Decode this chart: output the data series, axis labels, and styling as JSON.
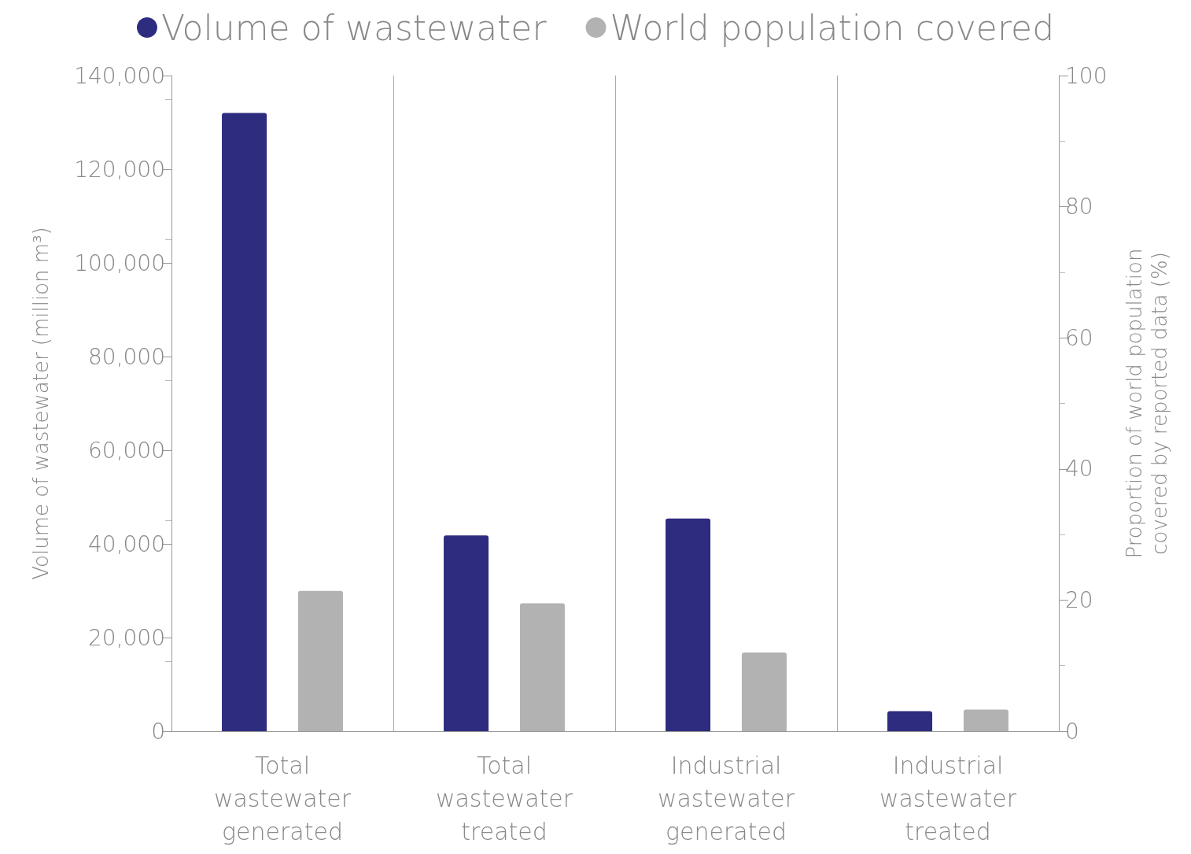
{
  "chart_data": {
    "type": "bar",
    "categories": [
      "Total wastewater generated",
      "Total wastewater treated",
      "Industrial wastewater generated",
      "Industrial wastewater treated"
    ],
    "series": [
      {
        "name": "Volume of wastewater",
        "color": "#2e2c7e",
        "values": [
          132000,
          41800,
          45400,
          4300
        ]
      },
      {
        "name": "World population covered",
        "color": "#b2b2b2",
        "axis": "y2",
        "values": [
          21.4,
          19.5,
          12.0,
          3.3
        ]
      }
    ],
    "ylabel": "Volume of wastewater (million m³)",
    "y2label": "Proportion of world population\ncovered by reported data (%)",
    "ylim": [
      0,
      140000
    ],
    "yticks": [
      {
        "value": 0,
        "label": "0"
      },
      {
        "value": 20000,
        "label": "20,000"
      },
      {
        "value": 40000,
        "label": "40,000"
      },
      {
        "value": 60000,
        "label": "60,000"
      },
      {
        "value": 80000,
        "label": "80,000"
      },
      {
        "value": 100000,
        "label": "100,000"
      },
      {
        "value": 120000,
        "label": "120,000"
      },
      {
        "value": 140000,
        "label": "140,000"
      }
    ],
    "y2lim": [
      0,
      100
    ],
    "y2ticks": [
      0,
      20,
      40,
      60,
      80,
      100
    ],
    "grid": "x",
    "legend": "top",
    "marker": "circle"
  }
}
